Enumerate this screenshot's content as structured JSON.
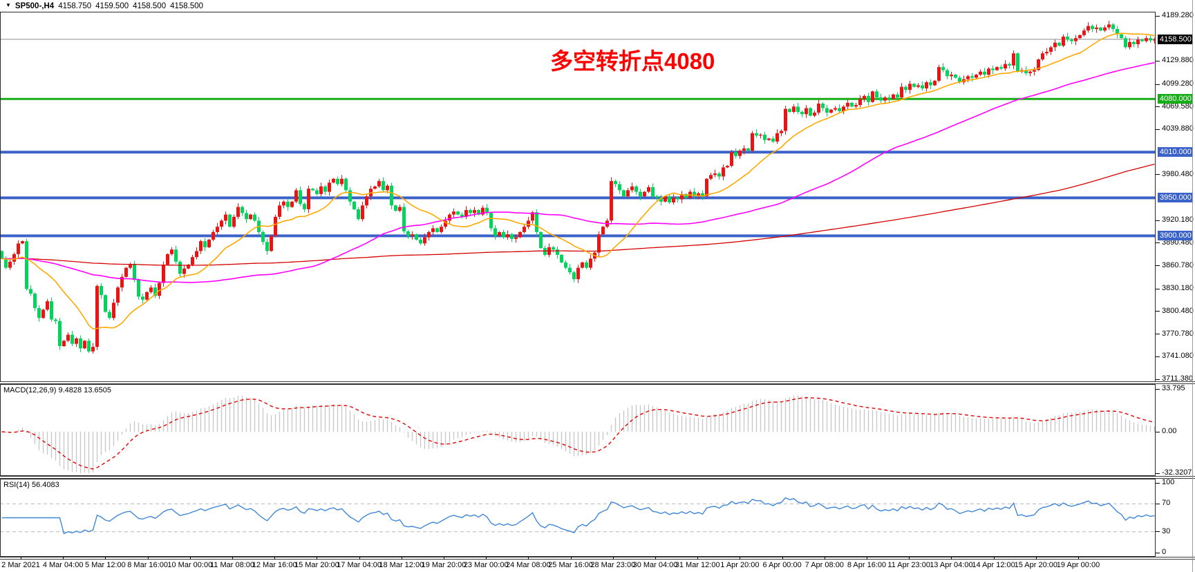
{
  "header": {
    "dropdown_icon": "▼",
    "symbol_period": "SP500-,H4",
    "open": "4158.750",
    "high": "4159.500",
    "low": "4158.500",
    "close": "4158.500"
  },
  "annotation": {
    "text": "多空转折点4080",
    "color": "#fb0200"
  },
  "price_axis": {
    "ticks": [
      "4189.280",
      "4129.880",
      "4099.280",
      "4069.580",
      "4039.880",
      "3980.480",
      "3920.180",
      "3890.480",
      "3860.780",
      "3830.180",
      "3800.480",
      "3770.780",
      "3741.080",
      "3711.380"
    ],
    "current_price": {
      "label": "4158.500",
      "value": 4158.5,
      "bg": "#000000"
    },
    "levels": [
      {
        "label": "4080.000",
        "value": 4080,
        "color": "#17ad17"
      },
      {
        "label": "4010.000",
        "value": 4010,
        "color": "#3a62c8"
      },
      {
        "label": "3950.000",
        "value": 3950,
        "color": "#3a62c8"
      },
      {
        "label": "3900.000",
        "value": 3900,
        "color": "#3a62c8"
      }
    ]
  },
  "macd": {
    "name": "MACD(12,26,9)",
    "value_main": "9.4828",
    "value_signal": "13.6505",
    "ticks": [
      "33.795",
      "0.00",
      "-32.3207"
    ]
  },
  "rsi": {
    "name": "RSI(14)",
    "value": "56.4083",
    "ticks": [
      100,
      70,
      30,
      0
    ],
    "dashed_levels": [
      70,
      30
    ]
  },
  "time_axis": {
    "labels": [
      "2 Mar 2021",
      "4 Mar 04:00",
      "5 Mar 12:00",
      "8 Mar 16:00",
      "10 Mar 00:00",
      "11 Mar 08:00",
      "12 Mar 16:00",
      "15 Mar 20:00",
      "17 Mar 04:00",
      "18 Mar 12:00",
      "19 Mar 20:00",
      "23 Mar 00:00",
      "24 Mar 08:00",
      "25 Mar 16:00",
      "28 Mar 23:00",
      "30 Mar 04:00",
      "31 Mar 12:00",
      "1 Apr 20:00",
      "6 Apr 00:00",
      "7 Apr 08:00",
      "8 Apr 16:00",
      "11 Apr 23:00",
      "13 Apr 04:00",
      "14 Apr 12:00",
      "15 Apr 20:00",
      "19 Apr 00:00"
    ]
  },
  "colors": {
    "candle_up": "#ea1414",
    "candle_down": "#00d45c",
    "ma_fast": "#ffa800",
    "ma_mid": "#ff00ff",
    "ma_slow": "#d40000",
    "current_line": "#8c8c8c",
    "macd_hist": "#c6c6c6",
    "macd_signal": "#e00000",
    "rsi_line": "#3e86d8",
    "rsi_level_dash": "#bdbdbd",
    "axis_text": "#000000",
    "panel_border": "#3c3c3c"
  },
  "chart_data": {
    "type": "candlestick",
    "symbol": "SP500-",
    "timeframe": "H4",
    "title_note": "bull/bear turning point 4080 annotation",
    "y_range": [
      3711.38,
      4189.28
    ],
    "x_range_labels": [
      "2 Mar 2021",
      "19 Apr 00:00"
    ],
    "grid": false,
    "up_color_convention": "red-up-green-down",
    "last_close": 4158.5,
    "closes": [
      3870,
      3858,
      3866,
      3876,
      3890,
      3893,
      3830,
      3824,
      3805,
      3792,
      3803,
      3814,
      3790,
      3788,
      3755,
      3762,
      3770,
      3758,
      3765,
      3752,
      3762,
      3748,
      3754,
      3834,
      3822,
      3800,
      3792,
      3812,
      3832,
      3846,
      3858,
      3862,
      3842,
      3820,
      3816,
      3826,
      3832,
      3821,
      3838,
      3862,
      3876,
      3882,
      3866,
      3850,
      3857,
      3862,
      3872,
      3880,
      3893,
      3885,
      3895,
      3905,
      3912,
      3920,
      3928,
      3912,
      3925,
      3938,
      3930,
      3922,
      3928,
      3920,
      3905,
      3892,
      3880,
      3900,
      3925,
      3940,
      3945,
      3938,
      3945,
      3960,
      3942,
      3935,
      3962,
      3960,
      3955,
      3965,
      3958,
      3970,
      3975,
      3968,
      3975,
      3960,
      3945,
      3935,
      3922,
      3940,
      3952,
      3962,
      3965,
      3972,
      3960,
      3966,
      3940,
      3933,
      3938,
      3906,
      3900,
      3902,
      3895,
      3890,
      3898,
      3905,
      3910,
      3905,
      3912,
      3920,
      3928,
      3932,
      3928,
      3925,
      3934,
      3930,
      3934,
      3928,
      3937,
      3930,
      3910,
      3900,
      3905,
      3898,
      3902,
      3896,
      3898,
      3905,
      3912,
      3920,
      3931,
      3905,
      3884,
      3875,
      3885,
      3882,
      3875,
      3865,
      3858,
      3852,
      3843,
      3858,
      3865,
      3858,
      3870,
      3878,
      3902,
      3912,
      3920,
      3972,
      3968,
      3960,
      3952,
      3960,
      3965,
      3958,
      3952,
      3958,
      3964,
      3952,
      3950,
      3945,
      3952,
      3944,
      3950,
      3948,
      3955,
      3950,
      3958,
      3952,
      3956,
      3952,
      3975,
      3980,
      3982,
      3978,
      3990,
      3992,
      4010,
      4005,
      4012,
      4015,
      4012,
      4035,
      4032,
      4033,
      4026,
      4028,
      4024,
      4035,
      4038,
      4067,
      4063,
      4070,
      4063,
      4060,
      4068,
      4058,
      4062,
      4074,
      4068,
      4062,
      4066,
      4068,
      4064,
      4070,
      4075,
      4070,
      4072,
      4080,
      4084,
      4076,
      4090,
      4082,
      4078,
      4082,
      4080,
      4086,
      4082,
      4096,
      4092,
      4100,
      4096,
      4098,
      4094,
      4102,
      4098,
      4104,
      4122,
      4118,
      4110,
      4112,
      4108,
      4102,
      4106,
      4110,
      4108,
      4112,
      4116,
      4112,
      4120,
      4118,
      4122,
      4120,
      4126,
      4124,
      4140,
      4116,
      4118,
      4114,
      4116,
      4118,
      4132,
      4140,
      4142,
      4148,
      4154,
      4150,
      4162,
      4158,
      4156,
      4160,
      4164,
      4170,
      4176,
      4172,
      4174,
      4170,
      4174,
      4178,
      4172,
      4165,
      4160,
      4148,
      4155,
      4152,
      4158,
      4156,
      4160,
      4157,
      4158.5
    ],
    "moving_averages": [
      {
        "name": "fast-ma",
        "approx_period": 16,
        "color": "#ffa800"
      },
      {
        "name": "mid-ma",
        "approx_period": 70,
        "color": "#ff00ff"
      },
      {
        "name": "slow-ma",
        "approx_period": 250,
        "color": "#d40000"
      }
    ],
    "horizontal_levels": [
      4080,
      4010,
      3950,
      3900
    ],
    "subcharts": [
      {
        "type": "macd",
        "params": [
          12,
          26,
          9
        ],
        "main": 9.4828,
        "signal": 13.6505,
        "axis": [
          33.795,
          0.0,
          -32.3207
        ]
      },
      {
        "type": "rsi",
        "params": [
          14
        ],
        "value": 56.4083,
        "axis": [
          100,
          70,
          30,
          0
        ]
      }
    ]
  }
}
